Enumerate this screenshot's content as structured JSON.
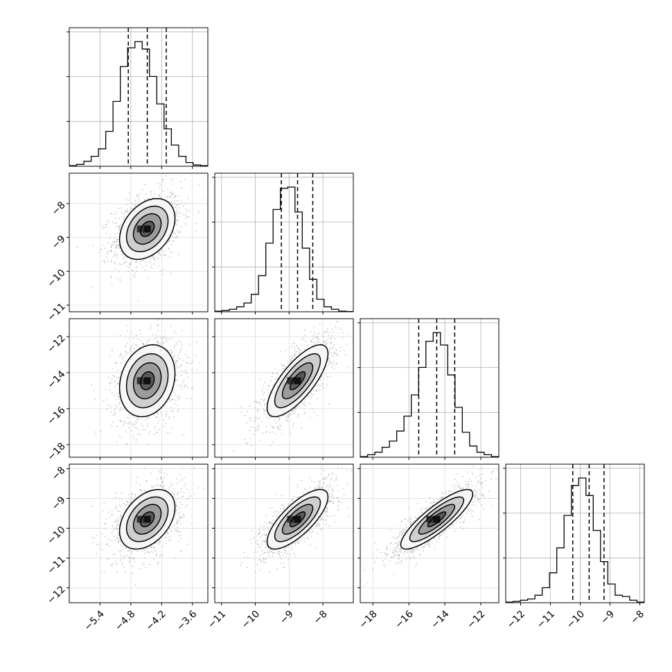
{
  "chart_data": {
    "type": "corner",
    "parameters": [
      {
        "ticks": [
          -5.4,
          -4.8,
          -4.2,
          -3.6
        ],
        "tick_labels": [
          "−5.4",
          "−4.8",
          "−4.2",
          "−3.6"
        ],
        "range": [
          -6.0,
          -3.3
        ],
        "mean": -4.48,
        "std": 0.27,
        "quantiles": [
          -4.85,
          -4.48,
          -4.11
        ]
      },
      {
        "ticks": [
          -11,
          -10,
          -9,
          -8
        ],
        "tick_labels": [
          "−11",
          "−10",
          "−9",
          "−8"
        ],
        "range": [
          -11.2,
          -7.1
        ],
        "mean": -8.75,
        "std": 0.45,
        "quantiles": [
          -9.23,
          -8.75,
          -8.3
        ]
      },
      {
        "ticks": [
          -18,
          -16,
          -14,
          -12
        ],
        "tick_labels": [
          "−18",
          "−16",
          "−14",
          "−12"
        ],
        "range": [
          -18.7,
          -11.0
        ],
        "mean": -14.45,
        "std": 1.0,
        "quantiles": [
          -15.45,
          -14.45,
          -13.45
        ]
      },
      {
        "ticks": [
          -12,
          -11,
          -10,
          -9,
          -8
        ],
        "tick_labels": [
          "−12",
          "−11",
          "−10",
          "−9",
          "−8"
        ],
        "range": [
          -12.5,
          -7.85
        ],
        "mean": -9.7,
        "std": 0.5,
        "quantiles": [
          -10.25,
          -9.7,
          -9.2
        ]
      }
    ],
    "histograms": [
      [
        0.005,
        0.015,
        0.04,
        0.08,
        0.14,
        0.28,
        0.52,
        0.8,
        0.95,
        1.0,
        0.94,
        0.72,
        0.5,
        0.3,
        0.17,
        0.08,
        0.03,
        0.01,
        0.005
      ],
      [
        0.005,
        0.01,
        0.02,
        0.04,
        0.07,
        0.14,
        0.29,
        0.55,
        0.82,
        0.99,
        1.0,
        0.8,
        0.51,
        0.26,
        0.1,
        0.04,
        0.02,
        0.005,
        0.002
      ],
      [
        0.005,
        0.02,
        0.04,
        0.08,
        0.13,
        0.21,
        0.33,
        0.5,
        0.72,
        0.93,
        1.0,
        0.9,
        0.66,
        0.4,
        0.2,
        0.09,
        0.04,
        0.02,
        0.005
      ],
      [
        0.005,
        0.01,
        0.02,
        0.03,
        0.06,
        0.12,
        0.24,
        0.44,
        0.7,
        0.94,
        1.0,
        0.86,
        0.58,
        0.33,
        0.15,
        0.06,
        0.05,
        0.02,
        0.005
      ]
    ],
    "correlations": [
      [
        1,
        0.35,
        0.2,
        0.4
      ],
      [
        0.35,
        1,
        0.75,
        0.75
      ],
      [
        0.2,
        0.75,
        1,
        0.85
      ],
      [
        0.4,
        0.75,
        0.85,
        1
      ]
    ],
    "contour_sigmas": [
      0.5,
      1.0,
      1.5,
      2.0
    ],
    "quantile_lines": "dashed",
    "grid": true
  }
}
